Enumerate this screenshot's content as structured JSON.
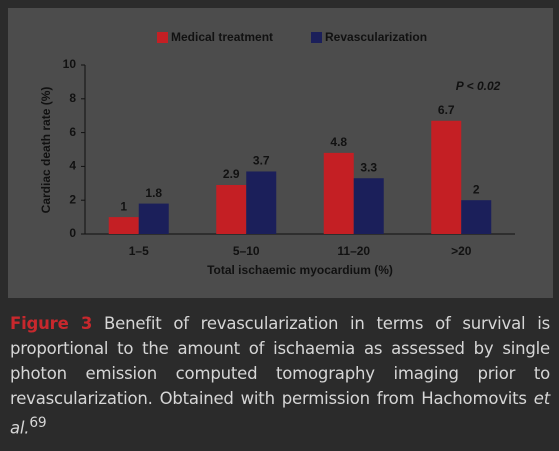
{
  "chart_data": {
    "type": "bar",
    "categories": [
      "1–5",
      "5–10",
      "11–20",
      ">20"
    ],
    "series": [
      {
        "name": "Medical treatment",
        "color": "#c41f24",
        "values": [
          1,
          2.9,
          4.8,
          6.7
        ]
      },
      {
        "name": "Revascularization",
        "color": "#1b1f5a",
        "values": [
          1.8,
          3.7,
          3.3,
          2
        ]
      }
    ],
    "y_label": "Cardiac death rate (%)",
    "x_label": "Total ischaemic myocardium (%)",
    "annotation": "P < 0.02",
    "ylim": [
      0,
      10
    ],
    "yticks": [
      0,
      2,
      4,
      6,
      8,
      10
    ],
    "grid": false,
    "legend": "top"
  },
  "caption": {
    "label": "Figure 3",
    "text": "Benefit of revascularization in terms of survival is proportional to the amount of ischaemia as assessed by single photon emission computed tomography imaging prior to revascularization. Obtained with permission from Hachomovits",
    "italic": "et al.",
    "ref": "69"
  }
}
